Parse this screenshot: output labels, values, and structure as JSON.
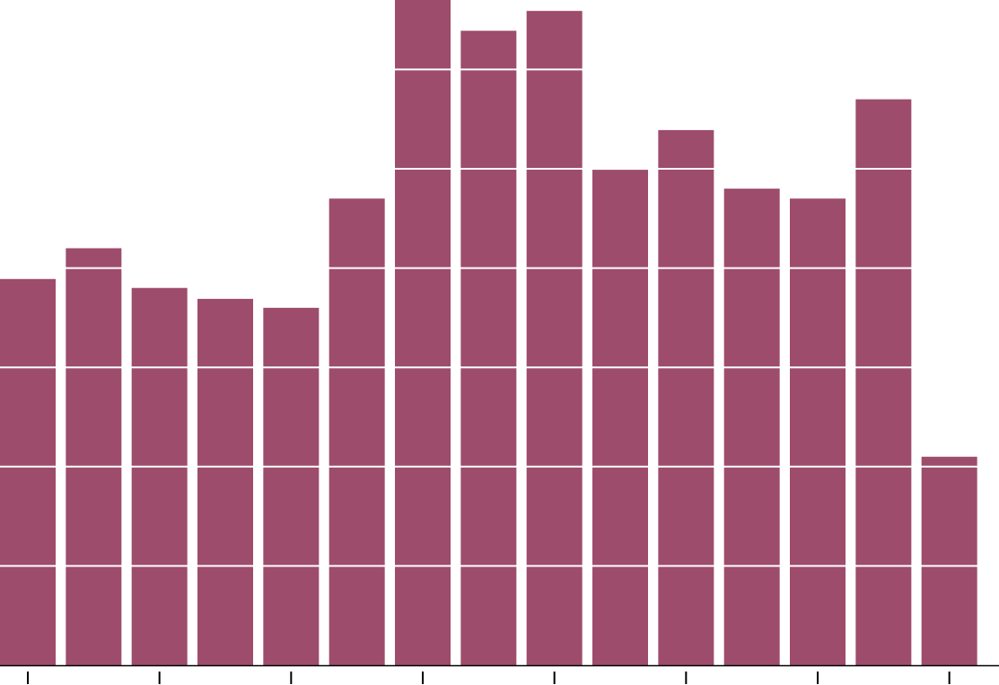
{
  "chart_data": {
    "type": "bar",
    "categories": [
      null,
      null,
      null,
      null,
      null,
      null,
      null,
      null,
      null,
      null,
      null,
      null,
      null,
      null,
      null
    ],
    "values": [
      3.89,
      4.2,
      3.8,
      3.69,
      3.6,
      4.7,
      6.7,
      6.39,
      6.59,
      4.99,
      5.39,
      4.8,
      4.7,
      5.7,
      2.1
    ],
    "color": "#9e4c6b",
    "ylim": [
      0,
      6.7
    ],
    "yticks": [
      1,
      2,
      3,
      4,
      5,
      6
    ],
    "grid": true,
    "xticks": [
      0,
      2,
      4,
      6,
      8,
      10,
      12,
      14
    ]
  }
}
